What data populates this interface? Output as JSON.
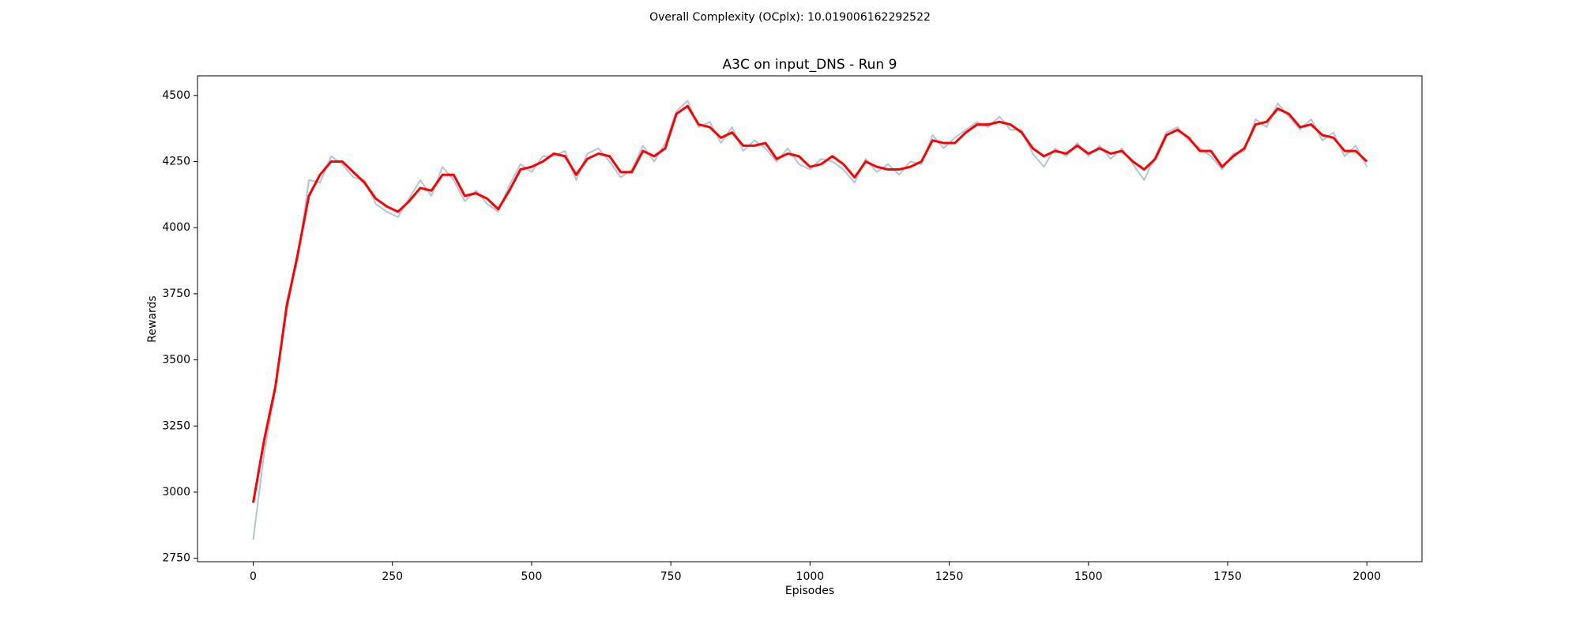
{
  "chart_data": {
    "type": "line",
    "suptitle": "Overall Complexity (OCplx): 10.019006162292522",
    "suptitle_color": "#ff0000",
    "title": "A3C on input_DNS - Run 9",
    "x_label": "Episodes",
    "y_label": "Rewards",
    "xlim": [
      -100,
      2099
    ],
    "ylim": [
      2737,
      4574
    ],
    "xticks": [
      0,
      250,
      500,
      750,
      1000,
      1250,
      1500,
      1750,
      2000
    ],
    "yticks": [
      2750,
      3000,
      3250,
      3500,
      3750,
      4000,
      4250,
      4500
    ],
    "grid": false,
    "x": [
      0,
      20,
      40,
      60,
      80,
      100,
      120,
      140,
      160,
      180,
      200,
      220,
      240,
      260,
      280,
      300,
      320,
      340,
      360,
      380,
      400,
      420,
      440,
      460,
      480,
      500,
      520,
      540,
      560,
      580,
      600,
      620,
      640,
      660,
      680,
      700,
      720,
      740,
      760,
      780,
      800,
      820,
      840,
      860,
      880,
      900,
      920,
      940,
      960,
      980,
      1000,
      1020,
      1040,
      1060,
      1080,
      1100,
      1120,
      1140,
      1160,
      1180,
      1200,
      1220,
      1240,
      1260,
      1280,
      1300,
      1320,
      1340,
      1360,
      1380,
      1400,
      1420,
      1440,
      1460,
      1480,
      1500,
      1520,
      1540,
      1560,
      1580,
      1600,
      1620,
      1640,
      1660,
      1680,
      1700,
      1720,
      1740,
      1760,
      1780,
      1800,
      1820,
      1840,
      1860,
      1880,
      1900,
      1920,
      1940,
      1960,
      1980,
      2000
    ],
    "series": [
      {
        "color": "#b0c4de",
        "width": 2,
        "values": [
          2820,
          3150,
          3390,
          3720,
          3880,
          4180,
          4170,
          4270,
          4240,
          4190,
          4180,
          4090,
          4060,
          4040,
          4110,
          4180,
          4120,
          4230,
          4180,
          4100,
          4140,
          4090,
          4060,
          4160,
          4240,
          4210,
          4270,
          4270,
          4290,
          4180,
          4280,
          4300,
          4250,
          4190,
          4220,
          4310,
          4250,
          4320,
          4440,
          4480,
          4380,
          4400,
          4320,
          4380,
          4290,
          4330,
          4300,
          4250,
          4300,
          4240,
          4220,
          4260,
          4250,
          4220,
          4170,
          4260,
          4210,
          4240,
          4200,
          4250,
          4240,
          4350,
          4300,
          4340,
          4370,
          4400,
          4380,
          4420,
          4370,
          4370,
          4280,
          4230,
          4300,
          4270,
          4320,
          4270,
          4310,
          4260,
          4300,
          4240,
          4180,
          4270,
          4360,
          4380,
          4330,
          4300,
          4270,
          4220,
          4280,
          4290,
          4410,
          4380,
          4470,
          4420,
          4370,
          4410,
          4330,
          4360,
          4270,
          4310,
          4230
        ]
      },
      {
        "color": "#ff0000",
        "width": 3,
        "values": [
          2960,
          3200,
          3400,
          3700,
          3900,
          4120,
          4200,
          4250,
          4250,
          4210,
          4170,
          4110,
          4080,
          4060,
          4100,
          4150,
          4140,
          4200,
          4200,
          4120,
          4130,
          4110,
          4070,
          4140,
          4220,
          4230,
          4250,
          4280,
          4270,
          4200,
          4260,
          4280,
          4270,
          4210,
          4210,
          4290,
          4270,
          4300,
          4430,
          4460,
          4390,
          4380,
          4340,
          4360,
          4310,
          4310,
          4320,
          4260,
          4280,
          4270,
          4230,
          4240,
          4270,
          4240,
          4190,
          4250,
          4230,
          4220,
          4220,
          4230,
          4250,
          4330,
          4320,
          4320,
          4360,
          4390,
          4390,
          4400,
          4390,
          4360,
          4300,
          4270,
          4290,
          4280,
          4310,
          4280,
          4300,
          4280,
          4290,
          4250,
          4220,
          4260,
          4350,
          4370,
          4340,
          4290,
          4290,
          4230,
          4270,
          4300,
          4390,
          4400,
          4450,
          4430,
          4380,
          4390,
          4350,
          4340,
          4290,
          4290,
          4250
        ]
      }
    ]
  }
}
